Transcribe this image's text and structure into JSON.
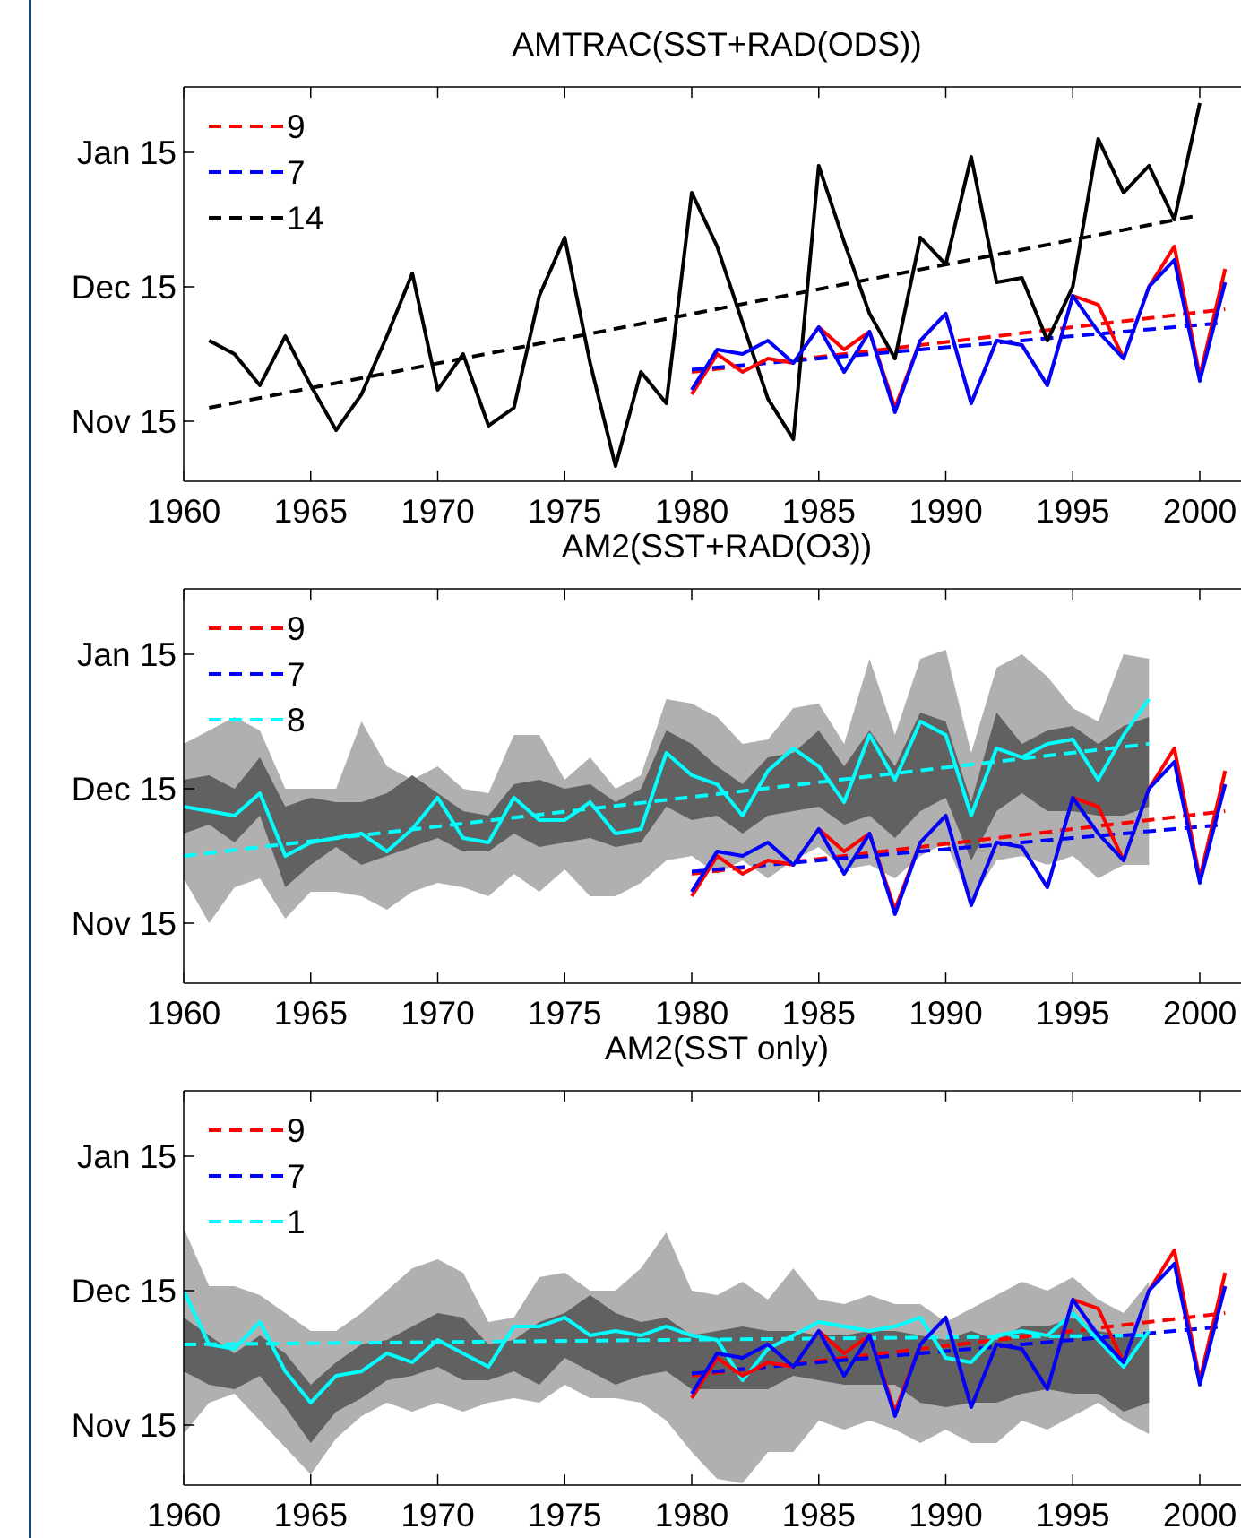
{
  "chart_data": [
    {
      "type": "line",
      "title": "AMTRAC(SST+RAD(ODS))",
      "x_ticks": [
        1960,
        1965,
        1970,
        1975,
        1980,
        1985,
        1990,
        1995,
        2000
      ],
      "y_ticks": [
        "Nov 15",
        "Dec 15",
        "Jan 15"
      ],
      "xlim": [
        1960,
        2002
      ],
      "ylim_days_from_nov15": [
        -14,
        59
      ],
      "legend": [
        {
          "label": "9",
          "color": "#ff0000",
          "style": "dashed"
        },
        {
          "label": "7",
          "color": "#0000ff",
          "style": "dashed"
        },
        {
          "label": "14",
          "color": "#000000",
          "style": "dashed"
        }
      ],
      "series": [
        {
          "name": "14",
          "color": "#000000",
          "x": [
            1961,
            1962,
            1963,
            1964,
            1965,
            1966,
            1967,
            1968,
            1969,
            1970,
            1971,
            1972,
            1973,
            1974,
            1975,
            1976,
            1977,
            1978,
            1979,
            1980,
            1981,
            1982,
            1983,
            1984,
            1985,
            1986,
            1987,
            1988,
            1989,
            1990,
            1991,
            1992,
            1993,
            1994,
            1995,
            1996,
            1997,
            1998,
            1999,
            2000
          ],
          "y": [
            18,
            15,
            8,
            19,
            8,
            -2,
            6,
            19,
            33,
            7,
            15,
            -1,
            3,
            28,
            41,
            13,
            -10,
            11,
            4,
            51,
            39,
            22,
            5,
            -4,
            57,
            40,
            24,
            14,
            41,
            35,
            59,
            31,
            32,
            18,
            30,
            63,
            51,
            57,
            45,
            71
          ]
        },
        {
          "name": "9",
          "color": "#ff0000",
          "x": [
            1980,
            1981,
            1982,
            1983,
            1984,
            1985,
            1986,
            1987,
            1988,
            1989,
            1990,
            1991,
            1992,
            1993,
            1994,
            1995,
            1996,
            1997,
            1998,
            1999,
            2000,
            2001
          ],
          "y": [
            6,
            15,
            11,
            14,
            13,
            21,
            16,
            20,
            3,
            18,
            24,
            4,
            18,
            17,
            8,
            28,
            26,
            14,
            30,
            39,
            10,
            34
          ]
        },
        {
          "name": "7",
          "color": "#0000ff",
          "x": [
            1980,
            1981,
            1982,
            1983,
            1984,
            1985,
            1986,
            1987,
            1988,
            1989,
            1990,
            1991,
            1992,
            1993,
            1994,
            1995,
            1996,
            1997,
            1998,
            1999,
            2000,
            2001
          ],
          "y": [
            7,
            16,
            15,
            18,
            13,
            21,
            11,
            20,
            2,
            18,
            24,
            4,
            18,
            17,
            8,
            28,
            20,
            14,
            30,
            36,
            9,
            31
          ]
        }
      ],
      "trends": [
        {
          "name": "14",
          "color": "#000000",
          "x": [
            1961,
            2000
          ],
          "y": [
            3,
            46
          ]
        },
        {
          "name": "9",
          "color": "#ff0000",
          "x": [
            1980,
            2001
          ],
          "y": [
            11,
            25
          ]
        },
        {
          "name": "7",
          "color": "#0000ff",
          "x": [
            1980,
            2001
          ],
          "y": [
            11.5,
            22
          ]
        }
      ]
    },
    {
      "type": "line",
      "title": "AM2(SST+RAD(O3))",
      "x_ticks": [
        1960,
        1965,
        1970,
        1975,
        1980,
        1985,
        1990,
        1995,
        2000
      ],
      "y_ticks": [
        "Nov 15",
        "Dec 15",
        "Jan 15"
      ],
      "xlim": [
        1960,
        2002
      ],
      "ylim_days_from_nov15": [
        -14,
        59
      ],
      "legend": [
        {
          "label": "9",
          "color": "#ff0000",
          "style": "dashed"
        },
        {
          "label": "7",
          "color": "#0000ff",
          "style": "dashed"
        },
        {
          "label": "8",
          "color": "#00ffff",
          "style": "dashed"
        }
      ],
      "bands": {
        "x": [
          1960,
          1961,
          1962,
          1963,
          1964,
          1965,
          1966,
          1967,
          1968,
          1969,
          1970,
          1971,
          1972,
          1973,
          1974,
          1975,
          1976,
          1977,
          1978,
          1979,
          1980,
          1981,
          1982,
          1983,
          1984,
          1985,
          1986,
          1987,
          1988,
          1989,
          1990,
          1991,
          1992,
          1993,
          1994,
          1995,
          1996,
          1997,
          1998
        ],
        "outer_upper": [
          40,
          43,
          46,
          43,
          30,
          30,
          30,
          45,
          35,
          32,
          35,
          30,
          29,
          42,
          42,
          32,
          37,
          30,
          33,
          50,
          49,
          46,
          40,
          41,
          48,
          49,
          40,
          59,
          42,
          59,
          61,
          38,
          57,
          60,
          55,
          48,
          45,
          60,
          59
        ],
        "outer_lower": [
          10,
          0,
          8,
          10,
          1,
          7,
          7,
          6,
          3,
          7,
          9,
          8,
          6,
          11,
          7,
          12,
          6,
          6,
          9,
          14,
          15,
          11,
          14,
          10,
          14,
          17,
          12,
          13,
          10,
          15,
          18,
          5,
          14,
          15,
          13,
          15,
          10,
          13,
          13
        ],
        "inner_upper": [
          32,
          33,
          30,
          37,
          26,
          28,
          27,
          27,
          29,
          33,
          29,
          25,
          24,
          31,
          32,
          30,
          31,
          27,
          30,
          43,
          40,
          35,
          31,
          37,
          38,
          43,
          35,
          43,
          35,
          47,
          45,
          27,
          47,
          40,
          43,
          44,
          40,
          44,
          46
        ],
        "inner_lower": [
          20,
          22,
          18,
          24,
          8,
          13,
          17,
          13,
          15,
          17,
          19,
          16,
          16,
          20,
          17,
          18,
          19,
          17,
          18,
          26,
          23,
          24,
          20,
          24,
          25,
          26,
          22,
          24,
          19,
          25,
          28,
          14,
          25,
          29,
          25,
          25,
          24,
          24,
          26
        ]
      },
      "series": [
        {
          "name": "8",
          "color": "#00ffff",
          "x": [
            1960,
            1961,
            1962,
            1963,
            1964,
            1965,
            1966,
            1967,
            1968,
            1969,
            1970,
            1971,
            1972,
            1973,
            1974,
            1975,
            1976,
            1977,
            1978,
            1979,
            1980,
            1981,
            1982,
            1983,
            1984,
            1985,
            1986,
            1987,
            1988,
            1989,
            1990,
            1991,
            1992,
            1993,
            1994,
            1995,
            1996,
            1997,
            1998
          ],
          "y": [
            26,
            25,
            24,
            29,
            15,
            18,
            19,
            20,
            16,
            21,
            28,
            19,
            18,
            28,
            23,
            23,
            27,
            20,
            21,
            38,
            33,
            31,
            24,
            34,
            39,
            35,
            27,
            42,
            32,
            45,
            42,
            24,
            39,
            37,
            40,
            41,
            32,
            42,
            50
          ]
        },
        {
          "name": "9",
          "color": "#ff0000",
          "x": [
            1980,
            1981,
            1982,
            1983,
            1984,
            1985,
            1986,
            1987,
            1988,
            1989,
            1990,
            1991,
            1992,
            1993,
            1994,
            1995,
            1996,
            1997,
            1998,
            1999,
            2000,
            2001
          ],
          "y": [
            6,
            15,
            11,
            14,
            13,
            21,
            16,
            20,
            3,
            18,
            24,
            4,
            18,
            17,
            8,
            28,
            26,
            14,
            30,
            39,
            10,
            34
          ]
        },
        {
          "name": "7",
          "color": "#0000ff",
          "x": [
            1980,
            1981,
            1982,
            1983,
            1984,
            1985,
            1986,
            1987,
            1988,
            1989,
            1990,
            1991,
            1992,
            1993,
            1994,
            1995,
            1996,
            1997,
            1998,
            1999,
            2000,
            2001
          ],
          "y": [
            7,
            16,
            15,
            18,
            13,
            21,
            11,
            20,
            2,
            18,
            24,
            4,
            18,
            17,
            8,
            28,
            20,
            14,
            30,
            36,
            9,
            31
          ]
        }
      ],
      "trends": [
        {
          "name": "8",
          "color": "#00ffff",
          "x": [
            1960,
            1998
          ],
          "y": [
            15,
            40
          ]
        },
        {
          "name": "9",
          "color": "#ff0000",
          "x": [
            1980,
            2001
          ],
          "y": [
            11,
            25
          ]
        },
        {
          "name": "7",
          "color": "#0000ff",
          "x": [
            1980,
            2001
          ],
          "y": [
            11.5,
            22
          ]
        }
      ]
    },
    {
      "type": "line",
      "title": "AM2(SST only)",
      "x_ticks": [
        1960,
        1965,
        1970,
        1975,
        1980,
        1985,
        1990,
        1995,
        2000
      ],
      "y_ticks": [
        "Nov 15",
        "Dec 15",
        "Jan 15"
      ],
      "xlim": [
        1960,
        2002
      ],
      "ylim_days_from_nov15": [
        -14,
        59
      ],
      "legend": [
        {
          "label": "9",
          "color": "#ff0000",
          "style": "dashed"
        },
        {
          "label": "7",
          "color": "#0000ff",
          "style": "dashed"
        },
        {
          "label": "1",
          "color": "#00ffff",
          "style": "dashed"
        }
      ],
      "bands": {
        "x": [
          1960,
          1961,
          1962,
          1963,
          1964,
          1965,
          1966,
          1967,
          1968,
          1969,
          1970,
          1971,
          1972,
          1973,
          1974,
          1975,
          1976,
          1977,
          1978,
          1979,
          1980,
          1981,
          1982,
          1983,
          1984,
          1985,
          1986,
          1987,
          1988,
          1989,
          1990,
          1991,
          1992,
          1993,
          1994,
          1995,
          1996,
          1997,
          1998
        ],
        "outer_upper": [
          44,
          31,
          31,
          29,
          25,
          21,
          21,
          25,
          30,
          35,
          37,
          34,
          23,
          24,
          33,
          34,
          30,
          30,
          35,
          43,
          30,
          29,
          32,
          28,
          35,
          28,
          27,
          29,
          27,
          27,
          23,
          26,
          29,
          32,
          30,
          33,
          28,
          25,
          32
        ],
        "outer_lower": [
          -2,
          5,
          7,
          1,
          -5,
          -11,
          -3,
          2,
          5,
          3,
          5,
          3,
          5,
          6,
          5,
          9,
          6,
          6,
          5,
          1,
          -6,
          -12,
          -13,
          -6,
          -6,
          1,
          -1,
          1,
          -1,
          -4,
          -1,
          -4,
          -4,
          1,
          -1,
          2,
          5,
          1,
          -2
        ],
        "inner_upper": [
          24,
          20,
          16,
          20,
          16,
          9,
          14,
          18,
          19,
          22,
          25,
          24,
          18,
          19,
          23,
          25,
          29,
          25,
          23,
          24,
          20,
          21,
          22,
          21,
          21,
          20,
          20,
          21,
          21,
          20,
          19,
          21,
          19,
          22,
          22,
          24,
          21,
          20,
          20
        ],
        "inner_lower": [
          12,
          9,
          8,
          11,
          4,
          -4,
          3,
          6,
          10,
          11,
          13,
          10,
          10,
          12,
          9,
          15,
          12,
          9,
          11,
          12,
          8,
          8,
          8,
          8,
          11,
          10,
          9,
          9,
          9,
          5,
          4,
          5,
          5,
          7,
          8,
          7,
          7,
          3,
          5
        ]
      },
      "series": [
        {
          "name": "1",
          "color": "#00ffff",
          "x": [
            1960,
            1961,
            1962,
            1963,
            1964,
            1965,
            1966,
            1967,
            1968,
            1969,
            1970,
            1971,
            1972,
            1973,
            1974,
            1975,
            1976,
            1977,
            1978,
            1979,
            1980,
            1981,
            1982,
            1983,
            1984,
            1985,
            1986,
            1987,
            1988,
            1989,
            1990,
            1991,
            1992,
            1993,
            1994,
            1995,
            1996,
            1997,
            1998
          ],
          "y": [
            30,
            18,
            17,
            23,
            12,
            5,
            11,
            12,
            16,
            14,
            19,
            16,
            13,
            22,
            22,
            24,
            20,
            21,
            20,
            22,
            20,
            19,
            10,
            17,
            20,
            23,
            22,
            21,
            22,
            24,
            15,
            14,
            20,
            21,
            20,
            25,
            19,
            13,
            21
          ]
        },
        {
          "name": "9",
          "color": "#ff0000",
          "x": [
            1980,
            1981,
            1982,
            1983,
            1984,
            1985,
            1986,
            1987,
            1988,
            1989,
            1990,
            1991,
            1992,
            1993,
            1994,
            1995,
            1996,
            1997,
            1998,
            1999,
            2000,
            2001
          ],
          "y": [
            6,
            15,
            11,
            14,
            13,
            21,
            16,
            20,
            3,
            18,
            24,
            4,
            18,
            17,
            8,
            28,
            26,
            14,
            30,
            39,
            10,
            34
          ]
        },
        {
          "name": "7",
          "color": "#0000ff",
          "x": [
            1980,
            1981,
            1982,
            1983,
            1984,
            1985,
            1986,
            1987,
            1988,
            1989,
            1990,
            1991,
            1992,
            1993,
            1994,
            1995,
            1996,
            1997,
            1998,
            1999,
            2000,
            2001
          ],
          "y": [
            7,
            16,
            15,
            18,
            13,
            21,
            11,
            20,
            2,
            18,
            24,
            4,
            18,
            17,
            8,
            28,
            20,
            14,
            30,
            36,
            9,
            31
          ]
        }
      ],
      "trends": [
        {
          "name": "1",
          "color": "#00ffff",
          "x": [
            1960,
            1998
          ],
          "y": [
            18,
            20
          ]
        },
        {
          "name": "9",
          "color": "#ff0000",
          "x": [
            1980,
            2001
          ],
          "y": [
            11,
            25
          ]
        },
        {
          "name": "7",
          "color": "#0000ff",
          "x": [
            1980,
            2001
          ],
          "y": [
            11.5,
            22
          ]
        }
      ]
    }
  ]
}
